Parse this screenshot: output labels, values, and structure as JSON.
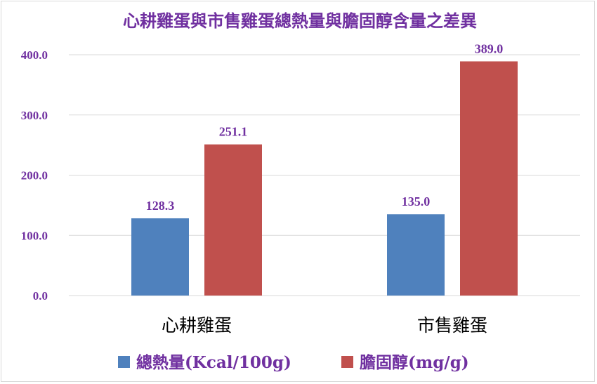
{
  "chart_data": {
    "type": "bar",
    "title": "心耕雞蛋與市售雞蛋總熱量與膽固醇含量之差異",
    "categories": [
      "心耕雞蛋",
      "市售雞蛋"
    ],
    "series": [
      {
        "name": "總熱量(Kcal/100g)",
        "values": [
          128.3,
          135.0
        ],
        "color": "#4f81bd"
      },
      {
        "name": "膽固醇(mg/g)",
        "values": [
          251.1,
          389.0
        ],
        "color": "#c0504d"
      }
    ],
    "data_labels": [
      [
        "128.3",
        "135.0"
      ],
      [
        "251.1",
        "389.0"
      ]
    ],
    "y_ticks": [
      "0.0",
      "100.0",
      "200.0",
      "300.0",
      "400.0"
    ],
    "ylim": [
      0,
      400
    ],
    "grid": true,
    "legend_position": "bottom",
    "colors": {
      "title": "#7030a0",
      "axis_tick": "#7030a0",
      "category": "#000000",
      "gridline": "#d9d9d9"
    }
  }
}
